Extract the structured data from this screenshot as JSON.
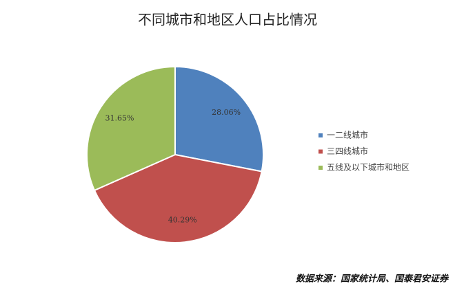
{
  "chart_data": {
    "type": "pie",
    "title": "不同城市和地区人口占比情况",
    "categories": [
      "一二线城市",
      "三四线城市",
      "五线及以下城市和地区"
    ],
    "values": [
      28.06,
      40.29,
      31.65
    ],
    "value_labels": [
      "28.06%",
      "40.29%",
      "31.65%"
    ],
    "colors": [
      "#4f81bd",
      "#c0504d",
      "#9bbb59"
    ],
    "legend": "right",
    "source": "数据来源：国家统计局、国泰君安证券"
  }
}
